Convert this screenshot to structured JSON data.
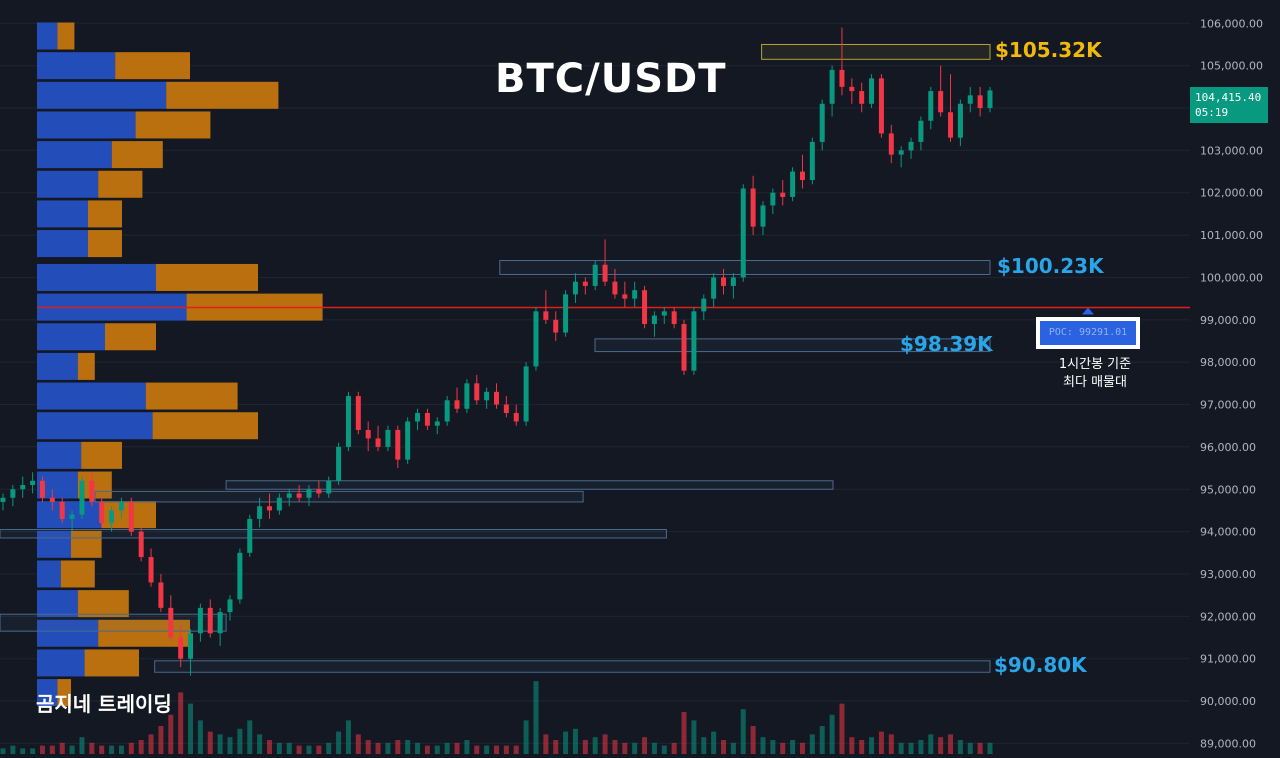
{
  "title": "BTC/USDT",
  "watermark": "곰지네 트레이딩",
  "current_price": {
    "value": "104,415.40",
    "countdown": "05:19",
    "bg": "#089981"
  },
  "poc": {
    "label": "POC: 99291.01",
    "note_line1": "1시간봉 기준",
    "note_line2": "최다 매물대",
    "color": "#2a62e0"
  },
  "levels": [
    {
      "text": "$105.32K",
      "price": 105320,
      "color": "#f0b90b"
    },
    {
      "text": "$100.23K",
      "price": 100230,
      "color": "#29a5e8"
    },
    {
      "text": "$98.39K",
      "price": 98390,
      "color": "#29a5e8"
    },
    {
      "text": "$90.80K",
      "price": 90800,
      "color": "#29a5e8"
    }
  ],
  "colors": {
    "up": "#089981",
    "down": "#f23645",
    "vp_buy": "#2554c7",
    "vp_sell": "#c9780e",
    "poc_line": "#e01e1e",
    "zone_yellow": "#b5a23a",
    "zone_blue": "#4a6a8c"
  },
  "chart_data": {
    "type": "candlestick",
    "symbol": "BTC/USDT",
    "timeframe": "1h",
    "y_ticks": [
      "106,000.00",
      "105,000.00",
      "104,000.00",
      "103,000.00",
      "102,000.00",
      "101,000.00",
      "100,000.00",
      "99,000.00",
      "98,000.00",
      "97,000.00",
      "96,000.00",
      "95,000.00",
      "94,000.00",
      "93,000.00",
      "92,000.00",
      "91,000.00",
      "90,000.00",
      "89,000.00"
    ],
    "ylim": [
      88750,
      106550
    ],
    "poc_price": 99291.01,
    "volume_profile": [
      {
        "price": 105700,
        "buy": 0.6,
        "sell": 0.5
      },
      {
        "price": 105000,
        "buy": 2.3,
        "sell": 2.2
      },
      {
        "price": 104300,
        "buy": 3.8,
        "sell": 3.3
      },
      {
        "price": 103600,
        "buy": 2.9,
        "sell": 2.2
      },
      {
        "price": 102900,
        "buy": 2.2,
        "sell": 1.5
      },
      {
        "price": 102200,
        "buy": 1.8,
        "sell": 1.3
      },
      {
        "price": 101500,
        "buy": 1.5,
        "sell": 1.0
      },
      {
        "price": 100800,
        "buy": 1.5,
        "sell": 1.0
      },
      {
        "price": 100000,
        "buy": 3.5,
        "sell": 3.0
      },
      {
        "price": 99300,
        "buy": 4.4,
        "sell": 4.0
      },
      {
        "price": 98600,
        "buy": 2.0,
        "sell": 1.5
      },
      {
        "price": 97900,
        "buy": 1.2,
        "sell": 0.5
      },
      {
        "price": 97200,
        "buy": 3.2,
        "sell": 2.7
      },
      {
        "price": 96500,
        "buy": 3.4,
        "sell": 3.1
      },
      {
        "price": 95800,
        "buy": 1.3,
        "sell": 1.2
      },
      {
        "price": 95100,
        "buy": 1.2,
        "sell": 1.0
      },
      {
        "price": 94400,
        "buy": 1.9,
        "sell": 1.6
      },
      {
        "price": 93700,
        "buy": 1.0,
        "sell": 0.9
      },
      {
        "price": 93000,
        "buy": 0.7,
        "sell": 1.0
      },
      {
        "price": 92300,
        "buy": 1.2,
        "sell": 1.5
      },
      {
        "price": 91600,
        "buy": 1.8,
        "sell": 2.7
      },
      {
        "price": 90900,
        "buy": 1.4,
        "sell": 1.6
      },
      {
        "price": 90200,
        "buy": 0.6,
        "sell": 0.4
      }
    ],
    "zones": [
      {
        "type": "supply",
        "low": 105150,
        "high": 105500,
        "x_start": 0.64
      },
      {
        "type": "demand",
        "low": 100070,
        "high": 100400,
        "x_start": 0.42
      },
      {
        "type": "demand",
        "low": 98250,
        "high": 98550,
        "x_start": 0.5
      },
      {
        "type": "demand",
        "low": 90680,
        "high": 90950,
        "x_start": 0.13
      },
      {
        "type": "demand",
        "low": 95000,
        "high": 95200,
        "x_start": 0.19,
        "x_end": 0.7
      },
      {
        "type": "demand",
        "low": 94700,
        "high": 94950,
        "x_start": 0.08,
        "x_end": 0.49
      },
      {
        "type": "demand",
        "low": 93850,
        "high": 94050,
        "x_start": 0.0,
        "x_end": 0.56
      },
      {
        "type": "demand",
        "low": 91650,
        "high": 92050,
        "x_start": 0.0,
        "x_end": 0.19
      }
    ],
    "candles": [
      [
        94700,
        94900,
        94500,
        94800
      ],
      [
        94800,
        95100,
        94600,
        95000
      ],
      [
        95000,
        95300,
        94800,
        95100
      ],
      [
        95100,
        95400,
        94900,
        95200
      ],
      [
        95200,
        95300,
        94700,
        94800
      ],
      [
        94800,
        95000,
        94500,
        94700
      ],
      [
        94700,
        94800,
        94200,
        94300
      ],
      [
        94300,
        94500,
        94000,
        94400
      ],
      [
        94400,
        95300,
        94300,
        95200
      ],
      [
        95200,
        95400,
        94600,
        94700
      ],
      [
        94700,
        94800,
        94100,
        94200
      ],
      [
        94200,
        94600,
        94000,
        94500
      ],
      [
        94500,
        94800,
        94300,
        94700
      ],
      [
        94700,
        94800,
        93900,
        94000
      ],
      [
        94000,
        94100,
        93300,
        93400
      ],
      [
        93400,
        93600,
        92700,
        92800
      ],
      [
        92800,
        93000,
        92100,
        92200
      ],
      [
        92200,
        92500,
        91400,
        91500
      ],
      [
        91500,
        91800,
        90800,
        91000
      ],
      [
        91000,
        91700,
        90600,
        91600
      ],
      [
        91600,
        92300,
        91400,
        92200
      ],
      [
        92200,
        92400,
        91500,
        91600
      ],
      [
        91600,
        92200,
        91300,
        92100
      ],
      [
        92100,
        92500,
        91900,
        92400
      ],
      [
        92400,
        93600,
        92300,
        93500
      ],
      [
        93500,
        94400,
        93400,
        94300
      ],
      [
        94300,
        94800,
        94100,
        94600
      ],
      [
        94600,
        94900,
        94300,
        94500
      ],
      [
        94500,
        94900,
        94400,
        94800
      ],
      [
        94800,
        95000,
        94600,
        94900
      ],
      [
        94900,
        95100,
        94700,
        94800
      ],
      [
        94800,
        95100,
        94600,
        95000
      ],
      [
        95000,
        95200,
        94800,
        94900
      ],
      [
        94900,
        95300,
        94800,
        95200
      ],
      [
        95200,
        96100,
        95100,
        96000
      ],
      [
        96000,
        97300,
        95900,
        97200
      ],
      [
        97200,
        97300,
        96300,
        96400
      ],
      [
        96400,
        96600,
        95900,
        96200
      ],
      [
        96200,
        96500,
        95900,
        96000
      ],
      [
        96000,
        96500,
        95900,
        96400
      ],
      [
        96400,
        96500,
        95500,
        95700
      ],
      [
        95700,
        96700,
        95600,
        96600
      ],
      [
        96600,
        96900,
        96400,
        96800
      ],
      [
        96800,
        96900,
        96400,
        96500
      ],
      [
        96500,
        96700,
        96300,
        96600
      ],
      [
        96600,
        97200,
        96500,
        97100
      ],
      [
        97100,
        97400,
        96800,
        96900
      ],
      [
        96900,
        97600,
        96800,
        97500
      ],
      [
        97500,
        97700,
        97000,
        97100
      ],
      [
        97100,
        97400,
        96900,
        97300
      ],
      [
        97300,
        97500,
        96900,
        97000
      ],
      [
        97000,
        97200,
        96700,
        96800
      ],
      [
        96800,
        97000,
        96500,
        96600
      ],
      [
        96600,
        98000,
        96500,
        97900
      ],
      [
        97900,
        99300,
        97800,
        99200
      ],
      [
        99200,
        99700,
        98900,
        99000
      ],
      [
        99000,
        99200,
        98500,
        98700
      ],
      [
        98700,
        99700,
        98600,
        99600
      ],
      [
        99600,
        100100,
        99400,
        99900
      ],
      [
        99900,
        100000,
        99600,
        99800
      ],
      [
        99800,
        100400,
        99700,
        100300
      ],
      [
        100300,
        100900,
        99800,
        99900
      ],
      [
        99900,
        100200,
        99500,
        99600
      ],
      [
        99600,
        99900,
        99300,
        99500
      ],
      [
        99500,
        99900,
        99300,
        99700
      ],
      [
        99700,
        99800,
        98800,
        98900
      ],
      [
        98900,
        99200,
        98600,
        99100
      ],
      [
        99100,
        99300,
        98900,
        99200
      ],
      [
        99200,
        99300,
        98800,
        98900
      ],
      [
        98900,
        99000,
        97700,
        97800
      ],
      [
        97800,
        99300,
        97700,
        99200
      ],
      [
        99200,
        99600,
        99000,
        99500
      ],
      [
        99500,
        100100,
        99300,
        100000
      ],
      [
        100000,
        100200,
        99600,
        99800
      ],
      [
        99800,
        100100,
        99500,
        100000
      ],
      [
        100000,
        102200,
        99900,
        102100
      ],
      [
        102100,
        102400,
        101000,
        101200
      ],
      [
        101200,
        101800,
        101000,
        101700
      ],
      [
        101700,
        102100,
        101500,
        102000
      ],
      [
        102000,
        102300,
        101700,
        101900
      ],
      [
        101900,
        102600,
        101800,
        102500
      ],
      [
        102500,
        102900,
        102100,
        102300
      ],
      [
        102300,
        103300,
        102200,
        103200
      ],
      [
        103200,
        104200,
        103000,
        104100
      ],
      [
        104100,
        105000,
        103800,
        104900
      ],
      [
        104900,
        105900,
        104300,
        104500
      ],
      [
        104500,
        104700,
        104100,
        104400
      ],
      [
        104400,
        104600,
        103900,
        104100
      ],
      [
        104100,
        104800,
        104000,
        104700
      ],
      [
        104700,
        104800,
        103300,
        103400
      ],
      [
        103400,
        103600,
        102700,
        102900
      ],
      [
        102900,
        103100,
        102600,
        103000
      ],
      [
        103000,
        103300,
        102800,
        103200
      ],
      [
        103200,
        103800,
        103000,
        103700
      ],
      [
        103700,
        104500,
        103500,
        104400
      ],
      [
        104400,
        105000,
        103800,
        103900
      ],
      [
        103900,
        104800,
        103200,
        103300
      ],
      [
        103300,
        104200,
        103100,
        104100
      ],
      [
        104100,
        104500,
        103900,
        104300
      ],
      [
        104300,
        104500,
        103800,
        104000
      ],
      [
        104000,
        104500,
        103900,
        104415
      ]
    ],
    "volume": [
      0.2,
      0.3,
      0.2,
      0.2,
      0.3,
      0.3,
      0.4,
      0.3,
      0.6,
      0.4,
      0.3,
      0.3,
      0.3,
      0.4,
      0.5,
      0.7,
      1.0,
      1.4,
      2.2,
      1.8,
      1.2,
      0.8,
      0.7,
      0.6,
      0.9,
      1.2,
      0.7,
      0.5,
      0.4,
      0.4,
      0.3,
      0.3,
      0.3,
      0.4,
      0.8,
      1.2,
      0.7,
      0.5,
      0.4,
      0.4,
      0.5,
      0.5,
      0.4,
      0.3,
      0.3,
      0.4,
      0.4,
      0.5,
      0.3,
      0.3,
      0.3,
      0.3,
      0.3,
      1.2,
      2.6,
      0.7,
      0.5,
      0.8,
      0.9,
      0.5,
      0.6,
      0.7,
      0.5,
      0.4,
      0.4,
      0.6,
      0.4,
      0.3,
      0.4,
      1.5,
      1.2,
      0.6,
      0.8,
      0.5,
      0.4,
      1.6,
      1.0,
      0.6,
      0.5,
      0.4,
      0.5,
      0.4,
      0.7,
      1.0,
      1.4,
      1.8,
      0.6,
      0.5,
      0.6,
      0.8,
      0.7,
      0.4,
      0.4,
      0.5,
      0.7,
      0.6,
      0.7,
      0.5,
      0.4,
      0.4,
      0.4
    ]
  }
}
